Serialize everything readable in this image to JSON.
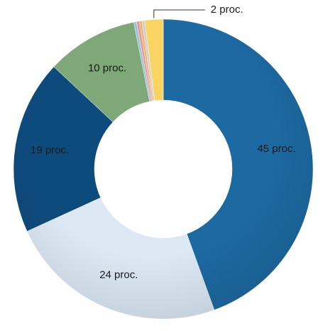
{
  "chart_data": {
    "type": "donut",
    "values": [
      45,
      24,
      19,
      10,
      0.3,
      0.3,
      0.3,
      0.3,
      2
    ],
    "value_labels": [
      "45 proc.",
      "24 proc.",
      "19 proc.",
      "10 proc.",
      null,
      null,
      null,
      null,
      "2 proc."
    ],
    "colors": [
      "#1d6aa3",
      "#dce9f5",
      "#0e4b7d",
      "#7ea877",
      "#9cc0de",
      "#e39a86",
      "#f2b27e",
      "#cfcfcf",
      "#f8d560"
    ]
  }
}
